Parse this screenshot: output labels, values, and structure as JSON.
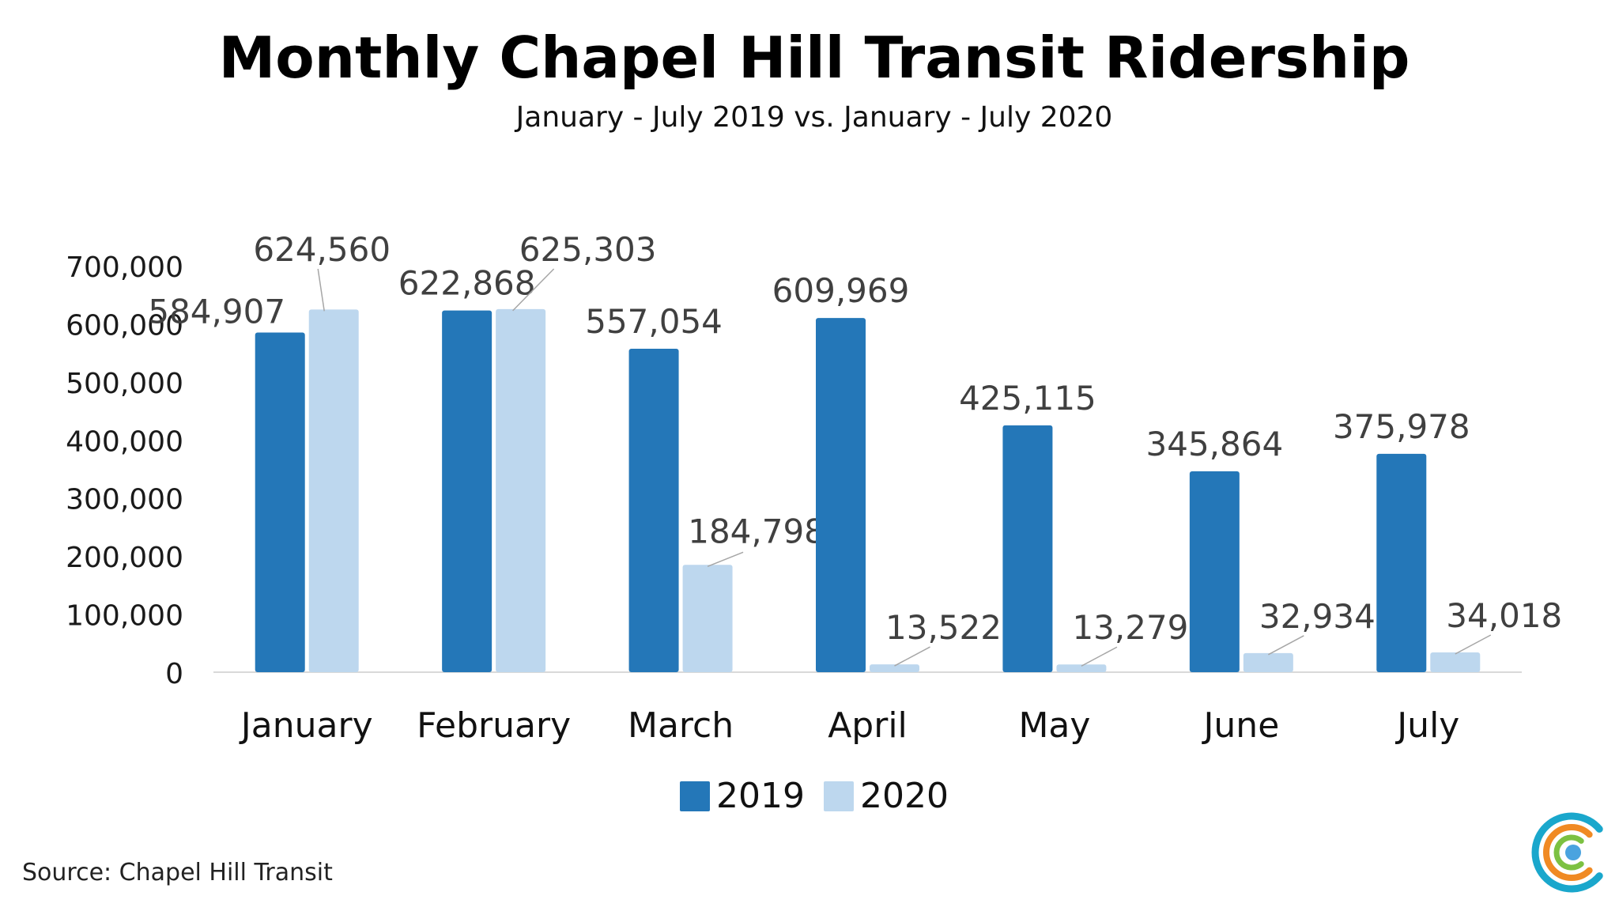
{
  "colors": {
    "series_2019": "#2477b8",
    "series_2020": "#bdd7ee",
    "leader": "#a6a6a6",
    "axis": "#d9d9d9",
    "logo_teal": "#1aa7cc",
    "logo_orange": "#f08a24",
    "logo_green": "#7cc142",
    "logo_blue": "#4aa3df"
  },
  "logo": {
    "icon": "circular-c-logo-icon"
  },
  "source": "Source: Chapel Hill Transit",
  "chart_data": {
    "type": "bar",
    "title": "Monthly Chapel Hill Transit Ridership",
    "subtitle": "January - July 2019 vs. January - July 2020",
    "xlabel": "",
    "ylabel": "",
    "ylim": [
      0,
      700000
    ],
    "yticks": [
      "0",
      "100,000",
      "200,000",
      "300,000",
      "400,000",
      "500,000",
      "600,000",
      "700,000"
    ],
    "categories": [
      "January",
      "February",
      "March",
      "April",
      "May",
      "June",
      "July"
    ],
    "series": [
      {
        "name": "2019",
        "values": [
          584907,
          622868,
          557054,
          609969,
          425115,
          345864,
          375978
        ],
        "labels": [
          "584,907",
          "622,868",
          "557,054",
          "609,969",
          "425,115",
          "345,864",
          "375,978"
        ]
      },
      {
        "name": "2020",
        "values": [
          624560,
          625303,
          184798,
          13522,
          13279,
          32934,
          34018
        ],
        "labels": [
          "624,560",
          "625,303",
          "184,798",
          "13,522",
          "13,279",
          "32,934",
          "34,018"
        ]
      }
    ],
    "grid": false,
    "legend_position": "bottom-center"
  }
}
